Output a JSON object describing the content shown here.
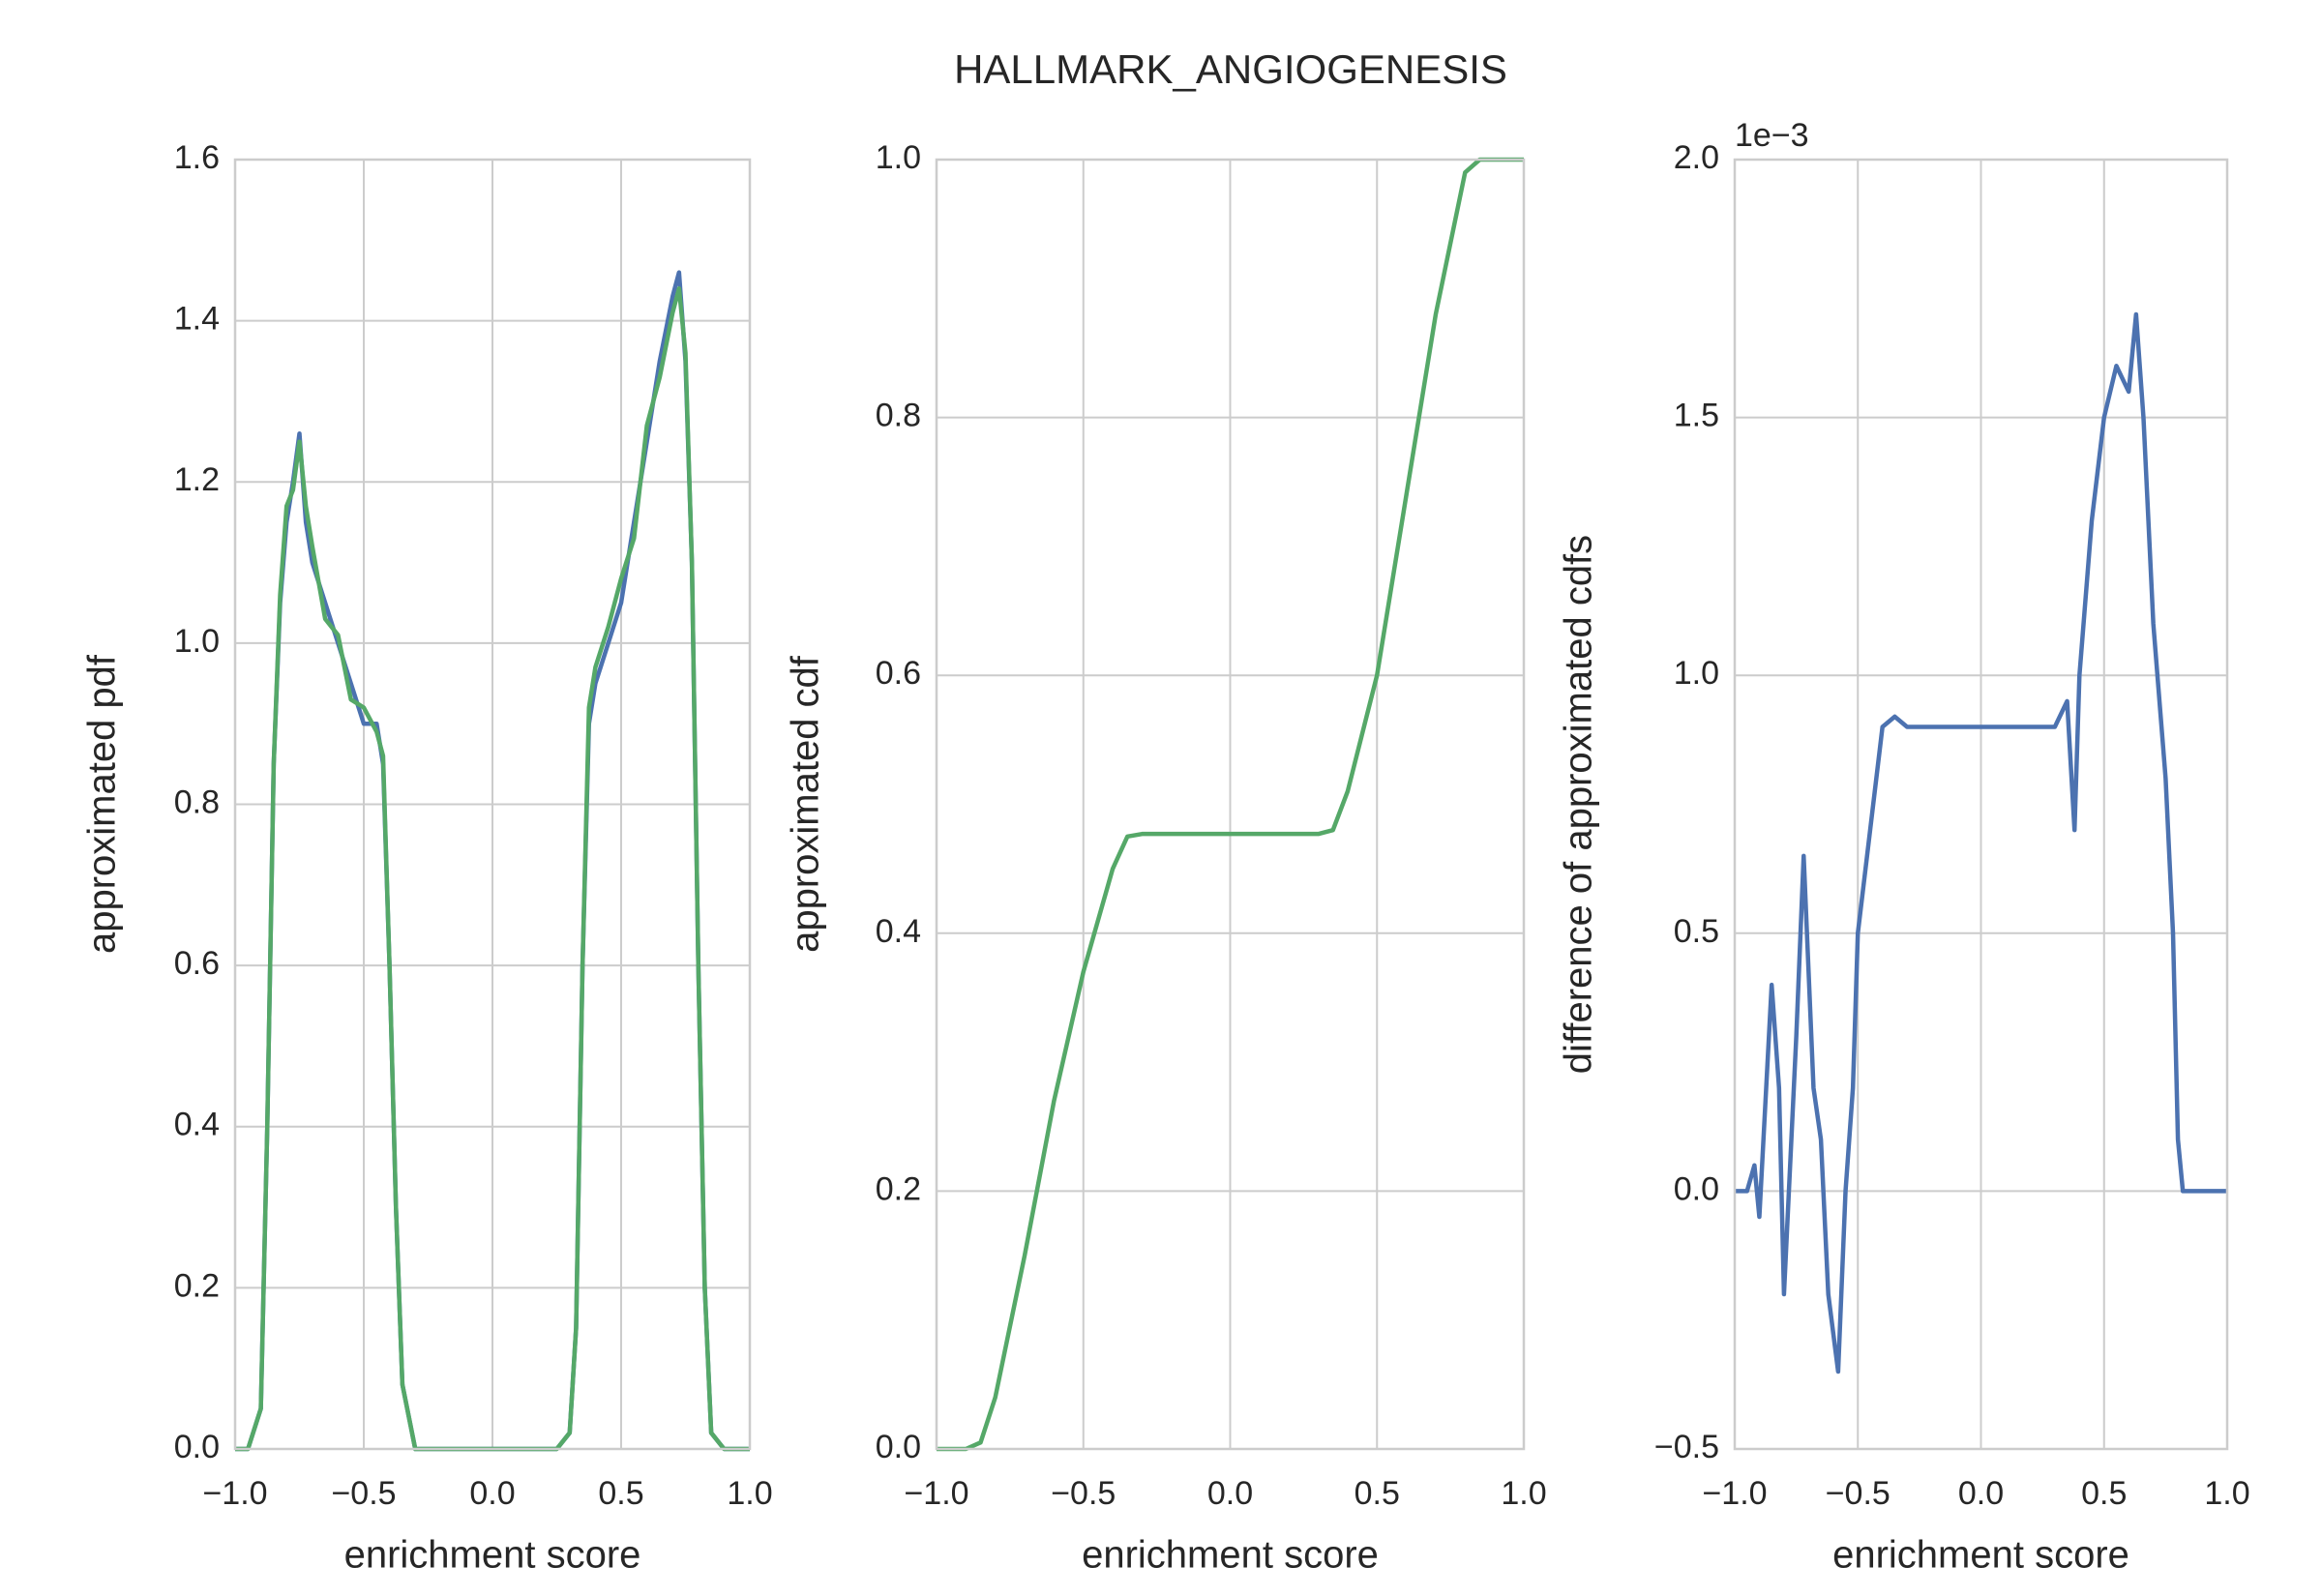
{
  "title": "HALLMARK_ANGIOGENESIS",
  "chart_data": [
    {
      "type": "line",
      "xlabel": "enrichment score",
      "ylabel": "approximated pdf",
      "x": [
        -1.0,
        -0.95,
        -0.9,
        -0.875,
        -0.85,
        -0.825,
        -0.8,
        -0.775,
        -0.75,
        -0.725,
        -0.7,
        -0.65,
        -0.6,
        -0.55,
        -0.5,
        -0.45,
        -0.425,
        -0.4,
        -0.375,
        -0.35,
        -0.3,
        -0.25,
        0,
        0.25,
        0.3,
        0.325,
        0.35,
        0.375,
        0.4,
        0.45,
        0.5,
        0.55,
        0.6,
        0.65,
        0.7,
        0.725,
        0.75,
        0.775,
        0.8,
        0.825,
        0.85,
        0.9,
        0.95,
        1.0
      ],
      "series": [
        {
          "color": "#4c72b0",
          "values": [
            0,
            0,
            0.05,
            0.4,
            0.85,
            1.05,
            1.15,
            1.2,
            1.26,
            1.15,
            1.1,
            1.05,
            1.0,
            0.95,
            0.9,
            0.9,
            0.85,
            0.6,
            0.3,
            0.08,
            0,
            0,
            0,
            0,
            0.02,
            0.15,
            0.6,
            0.9,
            0.95,
            1.0,
            1.05,
            1.15,
            1.25,
            1.35,
            1.43,
            1.46,
            1.35,
            1.1,
            0.6,
            0.2,
            0.02,
            0,
            0,
            0
          ]
        },
        {
          "color": "#55a868",
          "values": [
            0,
            0,
            0.05,
            0.4,
            0.85,
            1.06,
            1.17,
            1.19,
            1.25,
            1.17,
            1.12,
            1.03,
            1.01,
            0.93,
            0.92,
            0.89,
            0.86,
            0.6,
            0.3,
            0.08,
            0,
            0,
            0,
            0,
            0.02,
            0.15,
            0.6,
            0.92,
            0.97,
            1.02,
            1.08,
            1.13,
            1.27,
            1.33,
            1.41,
            1.44,
            1.36,
            1.1,
            0.6,
            0.2,
            0.02,
            0,
            0,
            0
          ]
        }
      ],
      "xlim": [
        -1.0,
        1.0
      ],
      "xticks": [
        {
          "value": -1.0,
          "label": "−1.0"
        },
        {
          "value": -0.5,
          "label": "−0.5"
        },
        {
          "value": 0.0,
          "label": "0.0"
        },
        0.5,
        {
          "value": 1.0,
          "label": "1.0"
        }
      ],
      "ylim": [
        0,
        1.6
      ],
      "yticks": [
        {
          "value": 0,
          "label": "0.0"
        },
        0.2,
        0.4,
        0.6,
        0.8,
        {
          "value": 1.0,
          "label": "1.0"
        },
        1.2,
        1.4,
        1.6
      ],
      "grid": true
    },
    {
      "type": "line",
      "xlabel": "enrichment score",
      "ylabel": "approximated cdf",
      "x": [
        -1.0,
        -0.9,
        -0.85,
        -0.8,
        -0.7,
        -0.6,
        -0.5,
        -0.4,
        -0.35,
        -0.3,
        0,
        0.3,
        0.35,
        0.4,
        0.5,
        0.6,
        0.7,
        0.8,
        0.85,
        1.0
      ],
      "series": [
        {
          "color": "#55a868",
          "values": [
            0,
            0,
            0.005,
            0.04,
            0.15,
            0.27,
            0.37,
            0.45,
            0.475,
            0.477,
            0.477,
            0.477,
            0.48,
            0.51,
            0.6,
            0.74,
            0.88,
            0.99,
            1.0,
            1.0
          ]
        }
      ],
      "xlim": [
        -1.0,
        1.0
      ],
      "xticks": [
        {
          "value": -1.0,
          "label": "−1.0"
        },
        {
          "value": -0.5,
          "label": "−0.5"
        },
        {
          "value": 0.0,
          "label": "0.0"
        },
        0.5,
        {
          "value": 1.0,
          "label": "1.0"
        }
      ],
      "ylim": [
        0,
        1.0
      ],
      "yticks": [
        {
          "value": 0,
          "label": "0.0"
        },
        0.2,
        0.4,
        0.6,
        0.8,
        {
          "value": 1.0,
          "label": "1.0"
        }
      ],
      "grid": true
    },
    {
      "type": "line",
      "xlabel": "enrichment score",
      "ylabel": "difference of approximated cdfs",
      "offset_label": "1e−3",
      "x": [
        -1.0,
        -0.95,
        -0.92,
        -0.9,
        -0.85,
        -0.82,
        -0.8,
        -0.75,
        -0.72,
        -0.68,
        -0.65,
        -0.62,
        -0.58,
        -0.55,
        -0.52,
        -0.5,
        -0.45,
        -0.4,
        -0.35,
        -0.3,
        0,
        0.3,
        0.35,
        0.38,
        0.4,
        0.45,
        0.5,
        0.55,
        0.6,
        0.63,
        0.66,
        0.7,
        0.75,
        0.78,
        0.8,
        0.82,
        0.85,
        1.0
      ],
      "series": [
        {
          "color": "#4c72b0",
          "values": [
            0,
            0,
            0.05,
            -0.05,
            0.4,
            0.2,
            -0.2,
            0.3,
            0.65,
            0.2,
            0.1,
            -0.2,
            -0.35,
            0,
            0.2,
            0.5,
            0.7,
            0.9,
            0.92,
            0.9,
            0.9,
            0.9,
            0.95,
            0.7,
            1.0,
            1.3,
            1.5,
            1.6,
            1.55,
            1.7,
            1.5,
            1.1,
            0.8,
            0.5,
            0.1,
            0,
            0,
            0
          ]
        }
      ],
      "xlim": [
        -1.0,
        1.0
      ],
      "xticks": [
        {
          "value": -1.0,
          "label": "−1.0"
        },
        {
          "value": -0.5,
          "label": "−0.5"
        },
        {
          "value": 0.0,
          "label": "0.0"
        },
        0.5,
        {
          "value": 1.0,
          "label": "1.0"
        }
      ],
      "ylim": [
        -0.5,
        2.0
      ],
      "yticks": [
        {
          "value": -0.5,
          "label": "−0.5"
        },
        {
          "value": 0.0,
          "label": "0.0"
        },
        0.5,
        {
          "value": 1.0,
          "label": "1.0"
        },
        1.5,
        {
          "value": 2.0,
          "label": "2.0"
        }
      ],
      "grid": true
    }
  ]
}
